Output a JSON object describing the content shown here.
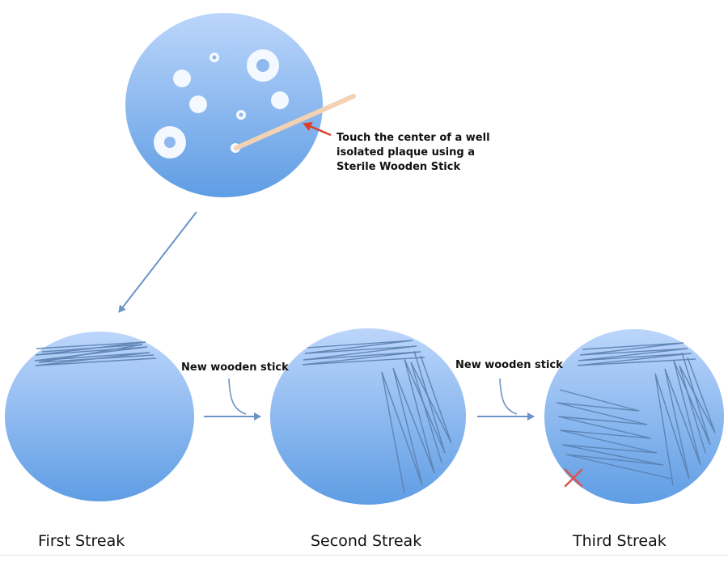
{
  "instruction": {
    "lines": [
      "Touch the center of a well",
      "isolated plaque using a",
      "Sterile Wooden Stick"
    ]
  },
  "transfer_labels": [
    "New wooden stick",
    "New wooden stick"
  ],
  "captions": [
    "First Streak",
    "Second Streak",
    "Third Streak"
  ],
  "colors": {
    "plate_top": "#bcd6fb",
    "plate_bottom": "#5f9de4",
    "plaque": "#f4f8ff",
    "streak": "#5a7fae",
    "stick": "#f2d2b3",
    "arrow_blue": "#6c93c6",
    "pointer_red": "#d9432e",
    "mark_red": "#d9534f"
  },
  "icons": [
    "wooden-stick-icon",
    "red-pointer-arrow-icon",
    "x-mark-icon"
  ]
}
